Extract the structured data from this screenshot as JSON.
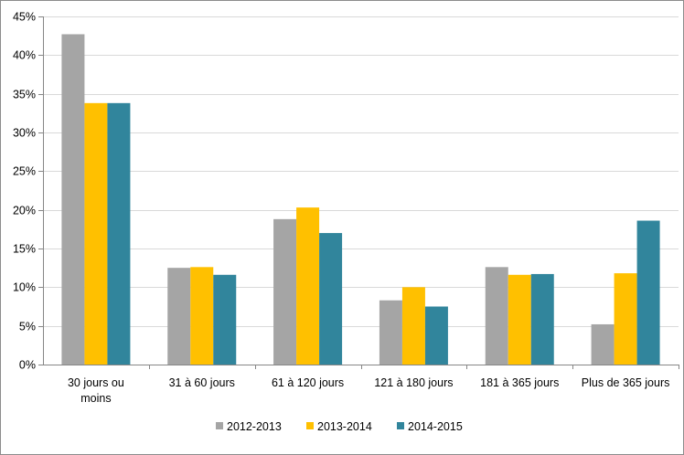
{
  "chart_data": {
    "type": "bar",
    "categories": [
      "30 jours ou moins",
      "31 à 60 jours",
      "61 à 120 jours",
      "121 à 180 jours",
      "181 à 365 jours",
      "Plus de 365 jours"
    ],
    "category_lines": [
      [
        "30 jours ou",
        "moins"
      ],
      [
        "31 à 60 jours"
      ],
      [
        "61 à 120 jours"
      ],
      [
        "121 à 180 jours"
      ],
      [
        "181 à 365 jours"
      ],
      [
        "Plus de 365 jours"
      ]
    ],
    "series": [
      {
        "name": "2012-2013",
        "color": "#a5a5a5",
        "values": [
          42.7,
          12.5,
          18.8,
          8.3,
          12.6,
          5.2
        ]
      },
      {
        "name": "2013-2014",
        "color": "#ffc000",
        "values": [
          33.8,
          12.6,
          20.3,
          10.0,
          11.6,
          11.8
        ]
      },
      {
        "name": "2014-2015",
        "color": "#31859c",
        "values": [
          33.8,
          11.6,
          17.0,
          7.5,
          11.7,
          18.6
        ]
      }
    ],
    "yticks": [
      "0%",
      "5%",
      "10%",
      "15%",
      "20%",
      "25%",
      "30%",
      "35%",
      "40%",
      "45%"
    ],
    "ylim": [
      0,
      45
    ],
    "grid": true,
    "legend_position": "bottom",
    "title": "",
    "xlabel": "",
    "ylabel": ""
  }
}
